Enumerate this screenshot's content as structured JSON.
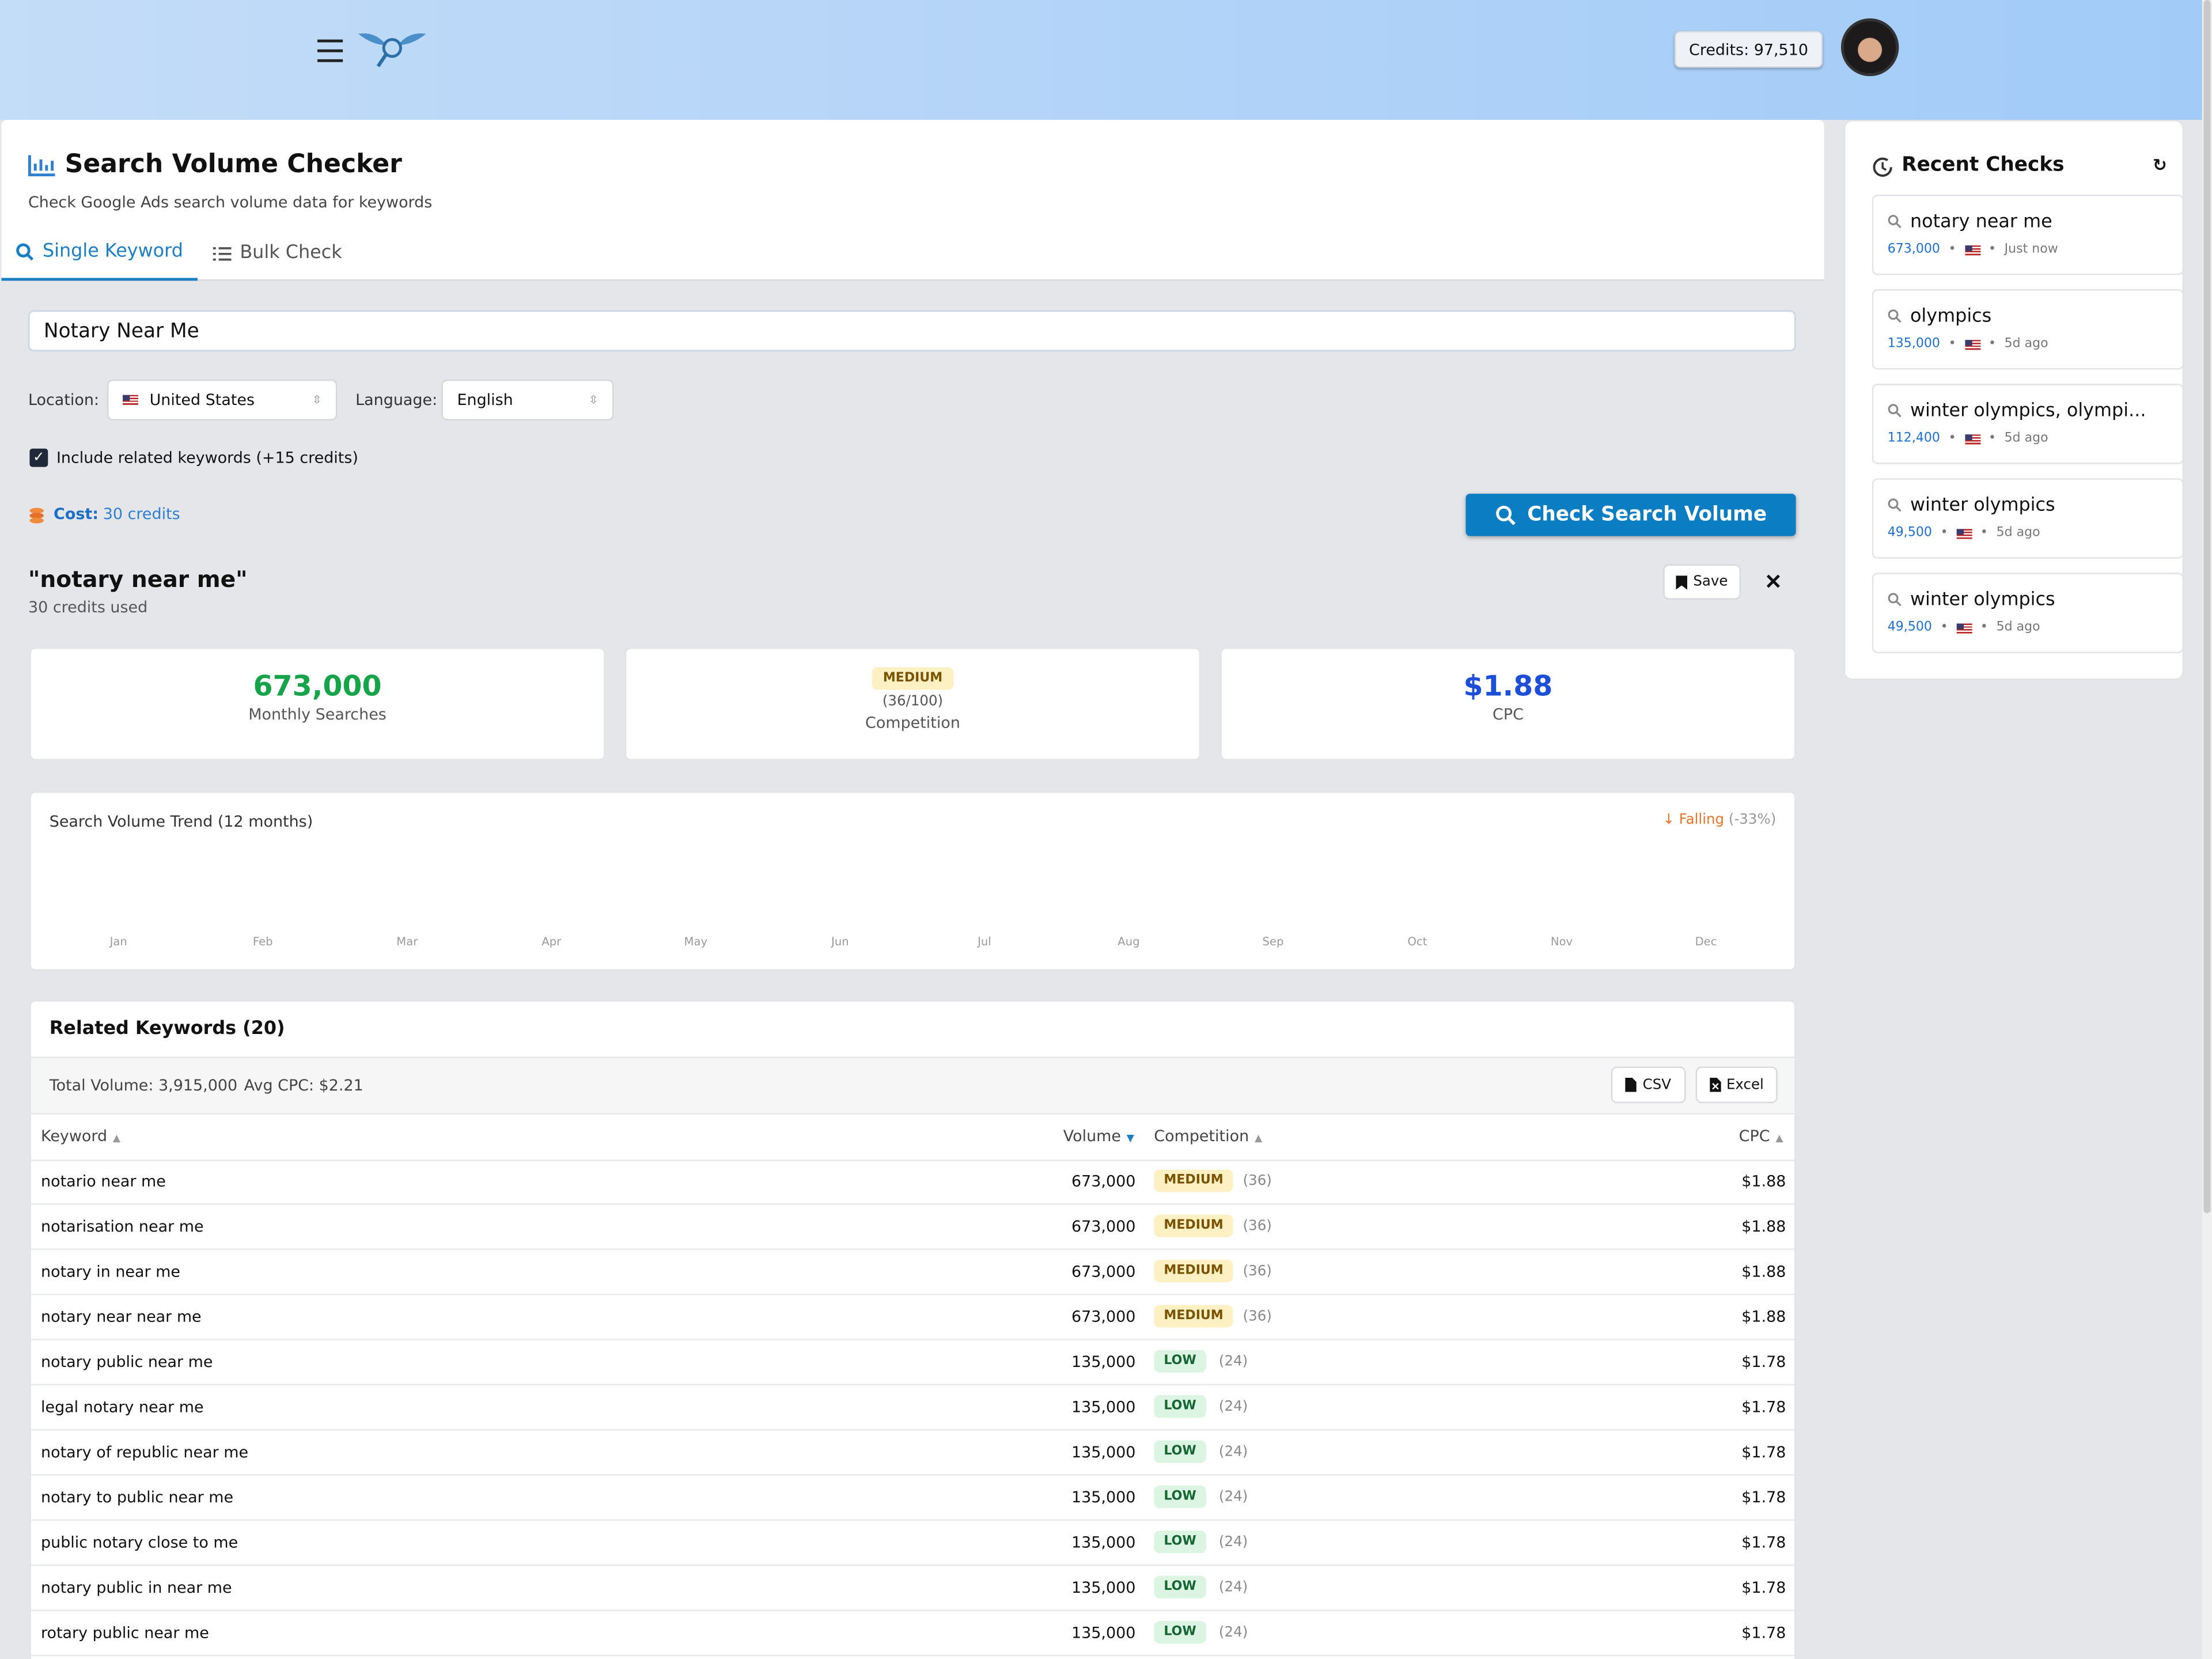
{
  "header": {
    "credits": "Credits: 97,510"
  },
  "page": {
    "title": "Search Volume Checker",
    "subtitle": "Check Google Ads search volume data for keywords"
  },
  "tabs": [
    "Single Keyword",
    "Bulk Check"
  ],
  "form": {
    "keyword": "Notary Near Me",
    "location_label": "Location:",
    "location": "United States",
    "language_label": "Language:",
    "language": "English",
    "related_checkbox": "Include related keywords (+15 credits)",
    "cost_label": "Cost:",
    "cost": "30 credits",
    "button": "Check Search Volume"
  },
  "result": {
    "title": "\"notary near me\"",
    "credits_used": "30 credits used",
    "save": "Save",
    "volume": "673,000",
    "volume_label": "Monthly Searches",
    "competition": "MEDIUM",
    "competition_score": "(36/100)",
    "competition_label": "Competition",
    "cpc": "$1.88",
    "cpc_label": "CPC"
  },
  "trend": {
    "title": "Search Volume Trend (12 months)",
    "status": "Falling",
    "change": "(-33%)",
    "months": [
      "Jan",
      "Feb",
      "Mar",
      "Apr",
      "May",
      "Jun",
      "Jul",
      "Aug",
      "Sep",
      "Oct",
      "Nov",
      "Dec"
    ]
  },
  "related": {
    "title": "Related Keywords (20)",
    "total": "Total Volume: 3,915,000",
    "avg": "Avg CPC: $2.21",
    "csv": "CSV",
    "excel": "Excel",
    "columns": [
      "Keyword",
      "Volume",
      "Competition",
      "CPC"
    ],
    "rows": [
      [
        "notario near me",
        "673,000",
        "MEDIUM",
        "(36)",
        "$1.88"
      ],
      [
        "notarisation near me",
        "673,000",
        "MEDIUM",
        "(36)",
        "$1.88"
      ],
      [
        "notary in near me",
        "673,000",
        "MEDIUM",
        "(36)",
        "$1.88"
      ],
      [
        "notary near near me",
        "673,000",
        "MEDIUM",
        "(36)",
        "$1.88"
      ],
      [
        "notary public near me",
        "135,000",
        "LOW",
        "(24)",
        "$1.78"
      ],
      [
        "legal notary near me",
        "135,000",
        "LOW",
        "(24)",
        "$1.78"
      ],
      [
        "notary of republic near me",
        "135,000",
        "LOW",
        "(24)",
        "$1.78"
      ],
      [
        "notary to public near me",
        "135,000",
        "LOW",
        "(24)",
        "$1.78"
      ],
      [
        "public notary close to me",
        "135,000",
        "LOW",
        "(24)",
        "$1.78"
      ],
      [
        "notary public in near me",
        "135,000",
        "LOW",
        "(24)",
        "$1.78"
      ],
      [
        "rotary public near me",
        "135,000",
        "LOW",
        "(24)",
        "$1.78"
      ]
    ]
  },
  "recent": {
    "title": "Recent Checks",
    "items": [
      {
        "keyword": "notary near me",
        "volume": "673,000",
        "time": "Just now"
      },
      {
        "keyword": "olympics",
        "volume": "135,000",
        "time": "5d ago"
      },
      {
        "keyword": "winter olympics, olympi...",
        "volume": "112,400",
        "time": "5d ago"
      },
      {
        "keyword": "winter olympics",
        "volume": "49,500",
        "time": "5d ago"
      },
      {
        "keyword": "winter olympics",
        "volume": "49,500",
        "time": "5d ago"
      }
    ]
  }
}
